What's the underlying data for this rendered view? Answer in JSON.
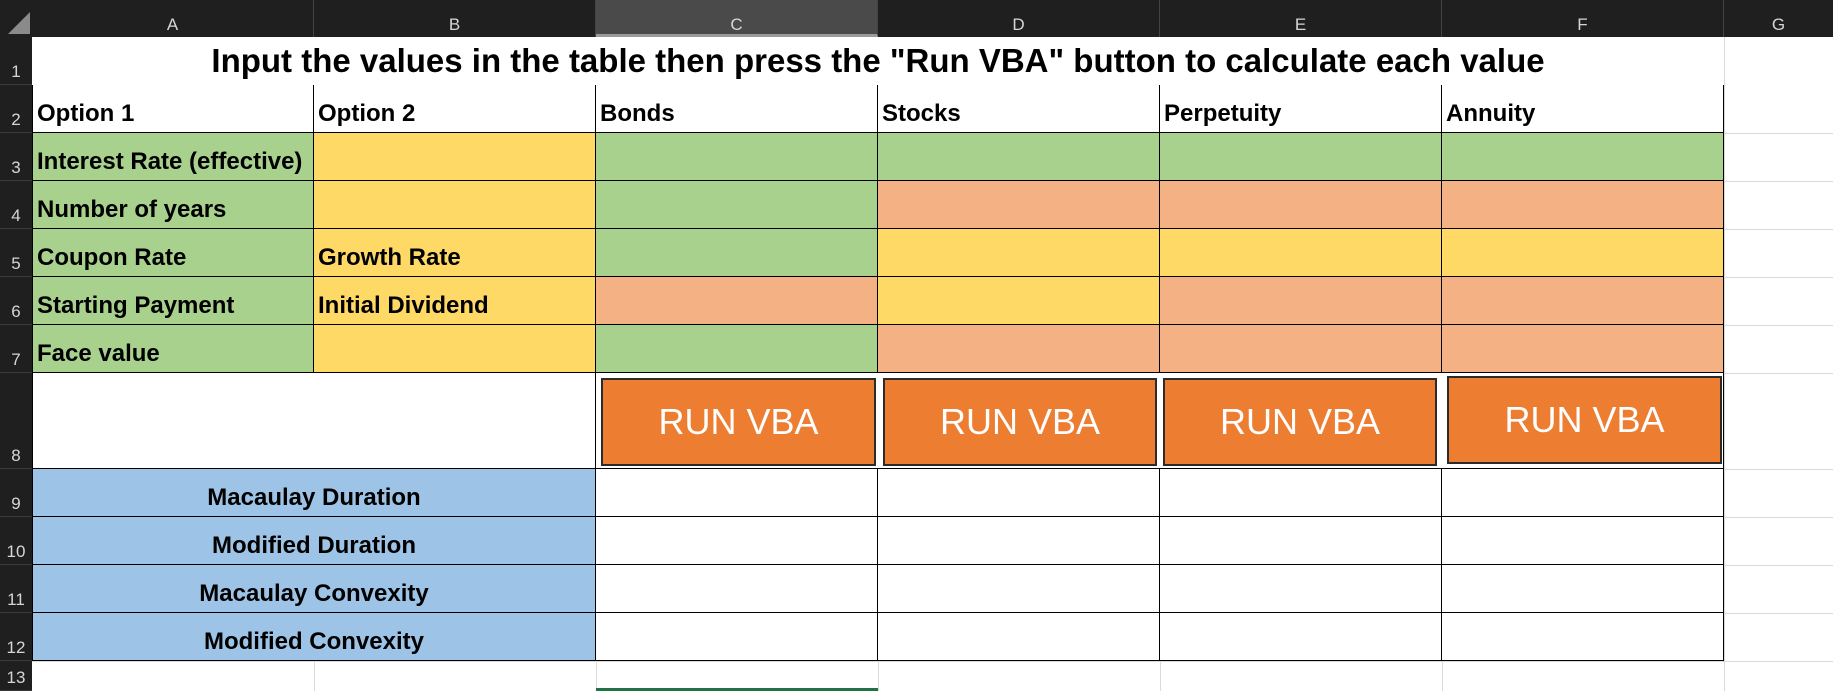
{
  "columns": [
    "A",
    "B",
    "C",
    "D",
    "E",
    "F",
    "G"
  ],
  "rows": [
    "1",
    "2",
    "3",
    "4",
    "5",
    "6",
    "7",
    "8",
    "9",
    "10",
    "11",
    "12",
    "13"
  ],
  "title": "Input the values in the table then press the \"Run VBA\" button to calculate each value",
  "header": {
    "a": "Option 1",
    "b": "Option 2",
    "c": "Bonds",
    "d": "Stocks",
    "e": "Perpetuity",
    "f": "Annuity"
  },
  "inputs": {
    "r3_a": "Interest Rate (effective)",
    "r4_a": "Number of years",
    "r5_a": "Coupon Rate",
    "r5_b": "Growth Rate",
    "r6_a": "Starting Payment",
    "r6_b": "Initial Dividend",
    "r7_a": "Face value"
  },
  "buttons": {
    "bonds": "RUN VBA",
    "stocks": "RUN VBA",
    "perpetuity": "RUN VBA",
    "annuity": "RUN VBA"
  },
  "outputs": {
    "r9": "Macaulay Duration",
    "r10": "Modified Duration",
    "r11": "Macaulay Convexity",
    "r12": "Modified Convexity"
  },
  "colors": {
    "green": "#a9d18e",
    "yellow": "#ffd966",
    "salmon": "#f4b183",
    "blue": "#9dc3e6",
    "button": "#ed7d31"
  }
}
